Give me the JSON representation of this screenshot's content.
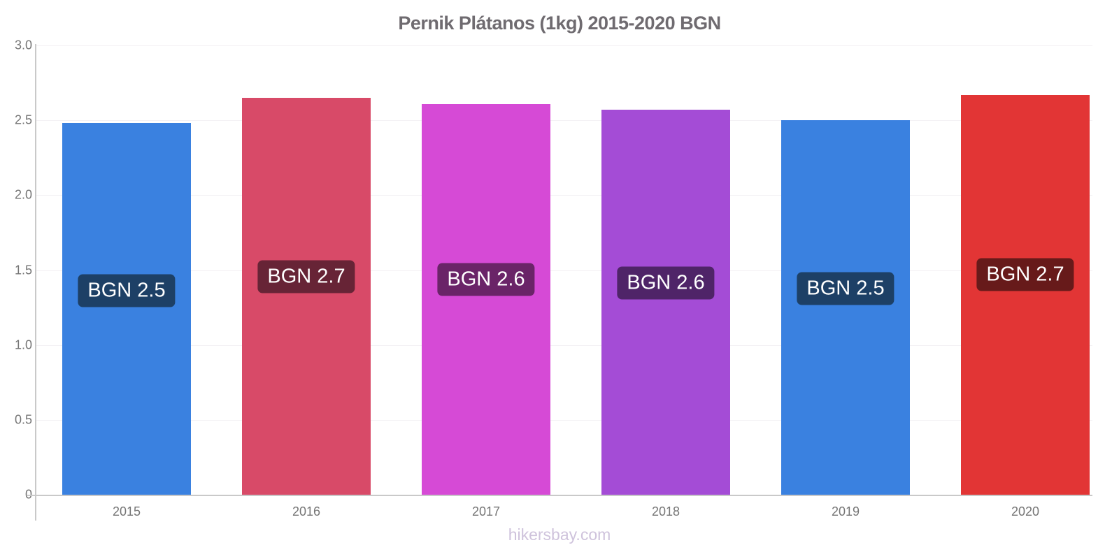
{
  "title": "Pernik Plátanos (1kg) 2015-2020 BGN",
  "footer": "hikersbay.com",
  "colors": {
    "background": "#ffffff",
    "title_text": "#6f6b70",
    "axis_line": "#c9c9c9",
    "tick_label": "#757575",
    "gridline": "#f3f1f4",
    "badge_text": "#ffffff",
    "footer_text": "#cfc3dc"
  },
  "chart_data": {
    "type": "bar",
    "title": "Pernik Plátanos (1kg) 2015-2020 BGN",
    "xlabel": "",
    "ylabel": "",
    "currency": "BGN",
    "categories": [
      "2015",
      "2016",
      "2017",
      "2018",
      "2019",
      "2020"
    ],
    "values": [
      2.48,
      2.65,
      2.61,
      2.57,
      2.5,
      2.67
    ],
    "bar_labels": [
      "BGN 2.5",
      "BGN 2.7",
      "BGN 2.6",
      "BGN 2.6",
      "BGN 2.5",
      "BGN 2.7"
    ],
    "bar_colors": [
      "#3a81e0",
      "#d84a68",
      "#d64ad6",
      "#a44cd6",
      "#3a81e0",
      "#e23535"
    ],
    "badge_colors": [
      "#1d4066",
      "#672436",
      "#6a2468",
      "#4f2468",
      "#1d4066",
      "#671a1a"
    ],
    "ylim": [
      0,
      3.0
    ],
    "yticks": [
      3.0,
      2.5,
      2.0,
      1.5,
      1.0,
      0.5,
      0
    ],
    "ytick_labels": [
      "3.0",
      "2.5",
      "2.0",
      "1.5",
      "1.0",
      "0.5",
      "0"
    ],
    "grid": true,
    "legend": false
  }
}
